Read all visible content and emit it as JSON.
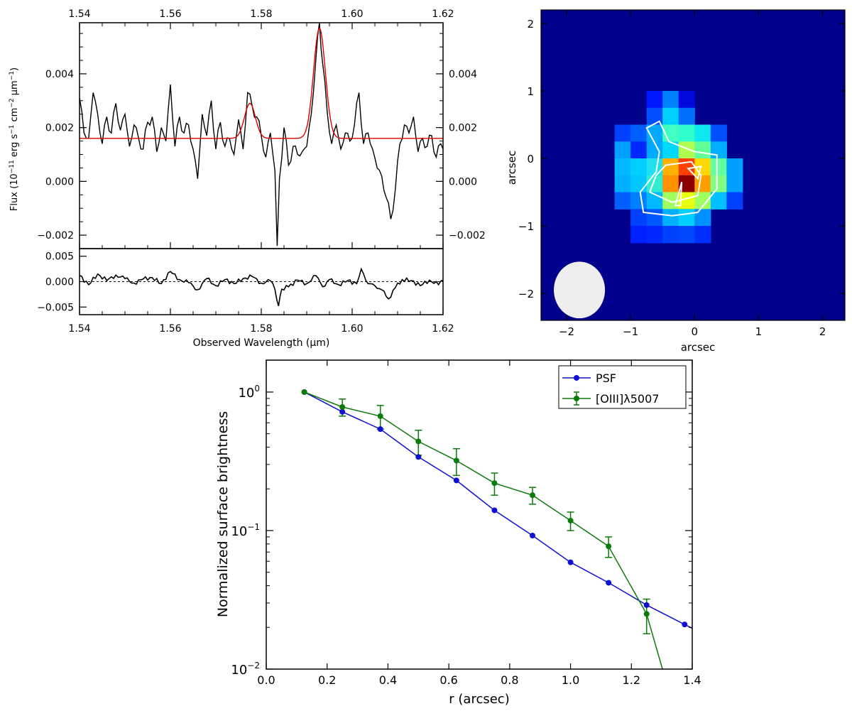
{
  "chart_data": [
    {
      "id": "spectrum",
      "type": "line",
      "xlabel": "Observed Wavelength (μm)",
      "ylabel_parts": [
        "Flux (10",
        "−11",
        " erg s",
        "−1",
        " cm",
        "−2",
        " μm",
        "−1",
        ")"
      ],
      "xlim": [
        1.54,
        1.62
      ],
      "ylim": [
        -0.0025,
        0.0059
      ],
      "xticks": [
        1.54,
        1.56,
        1.58,
        1.6,
        1.62
      ],
      "xtick_labels": [
        "1.54",
        "1.56",
        "1.58",
        "1.60",
        "1.62"
      ],
      "yticks": [
        -0.002,
        0.0,
        0.002,
        0.004
      ],
      "ytick_labels_left": [
        "−0.002",
        "0.000",
        "0.002",
        "0.004"
      ],
      "ytick_labels_right": [
        "−0.002",
        "0.000",
        "0.002",
        "0.004"
      ],
      "model": {
        "color": "#dd0000",
        "continuum": 0.0016,
        "lines": [
          {
            "center": 1.5775,
            "amplitude": 0.0013,
            "sigma": 0.0012
          },
          {
            "center": 1.5928,
            "amplitude": 0.0041,
            "sigma": 0.0013
          }
        ]
      },
      "observed_control_points": [
        [
          1.54,
          0.0031
        ],
        [
          1.541,
          0.0018
        ],
        [
          1.542,
          0.0016
        ],
        [
          1.543,
          0.0033
        ],
        [
          1.544,
          0.0025
        ],
        [
          1.545,
          0.0014
        ],
        [
          1.546,
          0.0024
        ],
        [
          1.547,
          0.0018
        ],
        [
          1.548,
          0.0029
        ],
        [
          1.549,
          0.0019
        ],
        [
          1.55,
          0.0025
        ],
        [
          1.551,
          0.0013
        ],
        [
          1.552,
          0.0021
        ],
        [
          1.553,
          0.0016
        ],
        [
          1.554,
          0.0012
        ],
        [
          1.555,
          0.0022
        ],
        [
          1.556,
          0.0024
        ],
        [
          1.557,
          0.0011
        ],
        [
          1.558,
          0.002
        ],
        [
          1.559,
          0.0015
        ],
        [
          1.56,
          0.0036
        ],
        [
          1.561,
          0.0013
        ],
        [
          1.562,
          0.0024
        ],
        [
          1.563,
          0.0018
        ],
        [
          1.564,
          0.0021
        ],
        [
          1.565,
          0.0012
        ],
        [
          1.566,
          0.0001
        ],
        [
          1.567,
          0.0025
        ],
        [
          1.568,
          0.0017
        ],
        [
          1.569,
          0.003
        ],
        [
          1.57,
          0.0012
        ],
        [
          1.571,
          0.0022
        ],
        [
          1.572,
          0.0013
        ],
        [
          1.573,
          0.0016
        ],
        [
          1.574,
          0.001
        ],
        [
          1.575,
          0.0023
        ],
        [
          1.576,
          0.0012
        ],
        [
          1.577,
          0.0033
        ],
        [
          1.578,
          0.0028
        ],
        [
          1.579,
          0.0024
        ],
        [
          1.58,
          0.0017
        ],
        [
          1.581,
          0.0009
        ],
        [
          1.582,
          0.0018
        ],
        [
          1.583,
          0.0004
        ],
        [
          1.5835,
          -0.0024
        ],
        [
          1.584,
          0.0001
        ],
        [
          1.585,
          0.002
        ],
        [
          1.586,
          0.0006
        ],
        [
          1.587,
          0.0013
        ],
        [
          1.588,
          0.001
        ],
        [
          1.589,
          0.0011
        ],
        [
          1.59,
          0.0013
        ],
        [
          1.591,
          0.0025
        ],
        [
          1.592,
          0.0045
        ],
        [
          1.5928,
          0.0059
        ],
        [
          1.5935,
          0.0044
        ],
        [
          1.5945,
          0.0026
        ],
        [
          1.5955,
          0.0014
        ],
        [
          1.5965,
          0.0021
        ],
        [
          1.5975,
          0.0012
        ],
        [
          1.5985,
          0.0018
        ],
        [
          1.5995,
          0.0015
        ],
        [
          1.6005,
          0.0021
        ],
        [
          1.6015,
          0.0033
        ],
        [
          1.6025,
          0.0014
        ],
        [
          1.6035,
          0.0018
        ],
        [
          1.6045,
          0.0012
        ],
        [
          1.6055,
          0.0005
        ],
        [
          1.6065,
          0.0002
        ],
        [
          1.6075,
          -0.0006
        ],
        [
          1.6085,
          -0.0014
        ],
        [
          1.6095,
          -0.0003
        ],
        [
          1.6105,
          0.0014
        ],
        [
          1.6115,
          0.0021
        ],
        [
          1.6125,
          0.0018
        ],
        [
          1.6135,
          0.0024
        ],
        [
          1.6145,
          0.0011
        ],
        [
          1.6155,
          0.0016
        ],
        [
          1.6165,
          0.0013
        ],
        [
          1.6175,
          0.0017
        ],
        [
          1.6185,
          0.0009
        ],
        [
          1.6195,
          0.0014
        ],
        [
          1.62,
          0.0012
        ]
      ]
    },
    {
      "id": "residuals",
      "type": "line",
      "xlabel": "Observed Wavelength (μm)",
      "xlim": [
        1.54,
        1.62
      ],
      "ylim": [
        -0.0065,
        0.0065
      ],
      "xticks": [
        1.54,
        1.56,
        1.58,
        1.6,
        1.62
      ],
      "xtick_labels": [
        "1.54",
        "1.56",
        "1.58",
        "1.60",
        "1.62"
      ],
      "yticks": [
        -0.005,
        0.0,
        0.005
      ],
      "ytick_labels": [
        "−0.005",
        "0.000",
        "0.005"
      ],
      "zero_line": 0.0,
      "control_points": [
        [
          1.54,
          0.0012
        ],
        [
          1.542,
          -0.0006
        ],
        [
          1.544,
          0.0015
        ],
        [
          1.546,
          0.0002
        ],
        [
          1.548,
          0.0013
        ],
        [
          1.55,
          0.0006
        ],
        [
          1.552,
          -0.0003
        ],
        [
          1.554,
          0.0005
        ],
        [
          1.556,
          0.0008
        ],
        [
          1.558,
          -0.0004
        ],
        [
          1.56,
          0.002
        ],
        [
          1.562,
          0.0004
        ],
        [
          1.564,
          -0.0002
        ],
        [
          1.566,
          -0.0016
        ],
        [
          1.568,
          0.0006
        ],
        [
          1.57,
          -0.0008
        ],
        [
          1.572,
          0.0004
        ],
        [
          1.574,
          -0.0004
        ],
        [
          1.576,
          0.0006
        ],
        [
          1.578,
          0.001
        ],
        [
          1.58,
          -0.0003
        ],
        [
          1.582,
          0.0002
        ],
        [
          1.583,
          -0.0015
        ],
        [
          1.5838,
          -0.0048
        ],
        [
          1.5845,
          -0.0015
        ],
        [
          1.586,
          -0.001
        ],
        [
          1.588,
          0.0003
        ],
        [
          1.59,
          -0.0004
        ],
        [
          1.592,
          0.0012
        ],
        [
          1.5935,
          -0.001
        ],
        [
          1.595,
          0.0004
        ],
        [
          1.597,
          -0.0006
        ],
        [
          1.599,
          0.0002
        ],
        [
          1.601,
          -0.0004
        ],
        [
          1.602,
          0.0025
        ],
        [
          1.6035,
          -0.0004
        ],
        [
          1.605,
          -0.0008
        ],
        [
          1.6065,
          -0.0016
        ],
        [
          1.608,
          -0.0034
        ],
        [
          1.6095,
          -0.0012
        ],
        [
          1.611,
          0.0004
        ],
        [
          1.613,
          0.0002
        ],
        [
          1.615,
          -0.0008
        ],
        [
          1.617,
          0.0003
        ],
        [
          1.619,
          -0.0006
        ],
        [
          1.62,
          0.0003
        ]
      ]
    },
    {
      "id": "image-map",
      "type": "heatmap",
      "xlabel": "arcsec",
      "ylabel": "arcsec",
      "xlim": [
        -2.4,
        2.35
      ],
      "ylim": [
        -2.4,
        2.2
      ],
      "xticks": [
        -2,
        -1,
        0,
        1,
        2
      ],
      "xtick_labels": [
        "−2",
        "−1",
        "0",
        "1",
        "2"
      ],
      "yticks": [
        -2,
        -1,
        0,
        1,
        2
      ],
      "ytick_labels": [
        "−2",
        "−1",
        "0",
        "1",
        "2"
      ],
      "background_color": "#00008c",
      "pixel_size": 0.25,
      "pixels": [
        {
          "x": -0.75,
          "y": 0.75,
          "color": "#0018ff"
        },
        {
          "x": -0.5,
          "y": 0.75,
          "color": "#0080ff"
        },
        {
          "x": -0.25,
          "y": 0.75,
          "color": "#0008e0"
        },
        {
          "x": -0.75,
          "y": 0.5,
          "color": "#0050ff"
        },
        {
          "x": -0.5,
          "y": 0.5,
          "color": "#00d0ff"
        },
        {
          "x": -0.25,
          "y": 0.5,
          "color": "#0070ff"
        },
        {
          "x": -1.25,
          "y": 0.25,
          "color": "#0040ff"
        },
        {
          "x": -1.0,
          "y": 0.25,
          "color": "#0060ff"
        },
        {
          "x": -0.75,
          "y": 0.25,
          "color": "#00a8ff"
        },
        {
          "x": -0.5,
          "y": 0.25,
          "color": "#40ffc0"
        },
        {
          "x": -0.25,
          "y": 0.25,
          "color": "#30ffcc"
        },
        {
          "x": 0.0,
          "y": 0.25,
          "color": "#10e8f0"
        },
        {
          "x": 0.25,
          "y": 0.25,
          "color": "#0050ff"
        },
        {
          "x": -1.25,
          "y": 0.0,
          "color": "#00a0ff"
        },
        {
          "x": -1.0,
          "y": 0.0,
          "color": "#0028ff"
        },
        {
          "x": -0.75,
          "y": 0.0,
          "color": "#00a8ff"
        },
        {
          "x": -0.5,
          "y": 0.0,
          "color": "#00d8ff"
        },
        {
          "x": -0.25,
          "y": 0.0,
          "color": "#b0ff50"
        },
        {
          "x": 0.0,
          "y": 0.0,
          "color": "#60ff98"
        },
        {
          "x": 0.25,
          "y": 0.0,
          "color": "#00b0ff"
        },
        {
          "x": -1.25,
          "y": -0.25,
          "color": "#00b8ff"
        },
        {
          "x": -1.0,
          "y": -0.25,
          "color": "#00d0ff"
        },
        {
          "x": -0.75,
          "y": -0.25,
          "color": "#20e0ee"
        },
        {
          "x": -0.5,
          "y": -0.25,
          "color": "#ffb000"
        },
        {
          "x": -0.25,
          "y": -0.25,
          "color": "#ff4000"
        },
        {
          "x": 0.0,
          "y": -0.25,
          "color": "#ffd800"
        },
        {
          "x": 0.25,
          "y": -0.25,
          "color": "#60ffa0"
        },
        {
          "x": 0.5,
          "y": -0.25,
          "color": "#00a0ff"
        },
        {
          "x": -1.25,
          "y": -0.5,
          "color": "#00b0ff"
        },
        {
          "x": -1.0,
          "y": -0.5,
          "color": "#00c8ff"
        },
        {
          "x": -0.75,
          "y": -0.5,
          "color": "#30ecd0"
        },
        {
          "x": -0.5,
          "y": -0.5,
          "color": "#ff9000"
        },
        {
          "x": -0.25,
          "y": -0.5,
          "color": "#8c0000"
        },
        {
          "x": 0.0,
          "y": -0.5,
          "color": "#ffa000"
        },
        {
          "x": 0.25,
          "y": -0.5,
          "color": "#80ff80"
        },
        {
          "x": 0.5,
          "y": -0.5,
          "color": "#00a0ff"
        },
        {
          "x": -1.25,
          "y": -0.75,
          "color": "#0060ff"
        },
        {
          "x": -1.0,
          "y": -0.75,
          "color": "#0080ff"
        },
        {
          "x": -0.75,
          "y": -0.75,
          "color": "#00b8ff"
        },
        {
          "x": -0.5,
          "y": -0.75,
          "color": "#a0ff60"
        },
        {
          "x": -0.25,
          "y": -0.75,
          "color": "#e8ff10"
        },
        {
          "x": 0.0,
          "y": -0.75,
          "color": "#a0ff60"
        },
        {
          "x": 0.25,
          "y": -0.75,
          "color": "#00c0ff"
        },
        {
          "x": 0.5,
          "y": -0.75,
          "color": "#0040ff"
        },
        {
          "x": -1.0,
          "y": -1.0,
          "color": "#0040ff"
        },
        {
          "x": -0.75,
          "y": -1.0,
          "color": "#0058ff"
        },
        {
          "x": -0.5,
          "y": -1.0,
          "color": "#00b0ff"
        },
        {
          "x": -0.25,
          "y": -1.0,
          "color": "#00d0ff"
        },
        {
          "x": 0.0,
          "y": -1.0,
          "color": "#0090ff"
        },
        {
          "x": -1.0,
          "y": -1.25,
          "color": "#0020ff"
        },
        {
          "x": -0.75,
          "y": -1.25,
          "color": "#0028ff"
        },
        {
          "x": -0.5,
          "y": -1.25,
          "color": "#0040ff"
        },
        {
          "x": -0.25,
          "y": -1.25,
          "color": "#0048ff"
        },
        {
          "x": 0.0,
          "y": -1.25,
          "color": "#0030ff"
        }
      ],
      "contours": [
        [
          [
            -0.75,
            0.45
          ],
          [
            -0.55,
            0.55
          ],
          [
            -0.4,
            0.25
          ],
          [
            0.0,
            0.1
          ],
          [
            0.35,
            0.05
          ],
          [
            0.35,
            -0.45
          ],
          [
            0.05,
            -0.8
          ],
          [
            -0.35,
            -0.85
          ],
          [
            -0.8,
            -0.8
          ],
          [
            -0.85,
            -0.5
          ],
          [
            -0.6,
            -0.2
          ],
          [
            -0.55,
            0.1
          ],
          [
            -0.75,
            0.45
          ]
        ],
        [
          [
            -0.45,
            -0.1
          ],
          [
            -0.05,
            -0.05
          ],
          [
            0.1,
            -0.25
          ],
          [
            0.05,
            -0.55
          ],
          [
            -0.35,
            -0.65
          ],
          [
            -0.7,
            -0.5
          ],
          [
            -0.6,
            -0.25
          ],
          [
            -0.45,
            -0.1
          ]
        ],
        [
          [
            -0.1,
            -0.15
          ],
          [
            0.1,
            -0.12
          ],
          [
            0.05,
            -0.3
          ],
          [
            -0.1,
            -0.15
          ]
        ],
        [
          [
            -0.2,
            -0.35
          ],
          [
            -0.22,
            -0.7
          ],
          [
            -0.3,
            -0.7
          ],
          [
            -0.2,
            -0.35
          ]
        ]
      ],
      "contour_color": "#ffffff",
      "beam": {
        "x": -1.8,
        "y": -1.95,
        "rx": 0.4,
        "ry": 0.42,
        "color": "#eeeeee"
      }
    },
    {
      "id": "surface-brightness",
      "type": "line",
      "xlabel": "r (arcsec)",
      "ylabel": "Normalized surface brightness",
      "xlim": [
        0.0,
        1.4
      ],
      "ylim": [
        0.01,
        1.7
      ],
      "yscale": "log",
      "xticks": [
        0.0,
        0.2,
        0.4,
        0.6,
        0.8,
        1.0,
        1.2,
        1.4
      ],
      "xtick_labels": [
        "0.0",
        "0.2",
        "0.4",
        "0.6",
        "0.8",
        "1.0",
        "1.2",
        "1.4"
      ],
      "yticks": [
        0.01,
        0.1,
        1.0
      ],
      "ytick_base": "10",
      "ytick_exponents": [
        "−2",
        "−1",
        "0"
      ],
      "legend_position": "top-right",
      "series": [
        {
          "name": "PSF",
          "color": "#1010d0",
          "x": [
            0.125,
            0.25,
            0.375,
            0.5,
            0.625,
            0.75,
            0.875,
            1.0,
            1.125,
            1.25,
            1.375
          ],
          "values": [
            1.0,
            0.72,
            0.54,
            0.34,
            0.23,
            0.14,
            0.092,
            0.059,
            0.042,
            0.029,
            0.021
          ]
        },
        {
          "name": "[OIII]λ5007",
          "color": "#0a7a0a",
          "x": [
            0.125,
            0.25,
            0.375,
            0.5,
            0.625,
            0.75,
            0.875,
            1.0,
            1.125,
            1.25
          ],
          "values": [
            1.0,
            0.78,
            0.67,
            0.44,
            0.32,
            0.22,
            0.18,
            0.118,
            0.077,
            0.025
          ],
          "errors": [
            0.0,
            0.11,
            0.13,
            0.09,
            0.07,
            0.04,
            0.025,
            0.018,
            0.013,
            0.007
          ],
          "tail_to": [
            1.305,
            0.0095
          ]
        }
      ]
    }
  ]
}
